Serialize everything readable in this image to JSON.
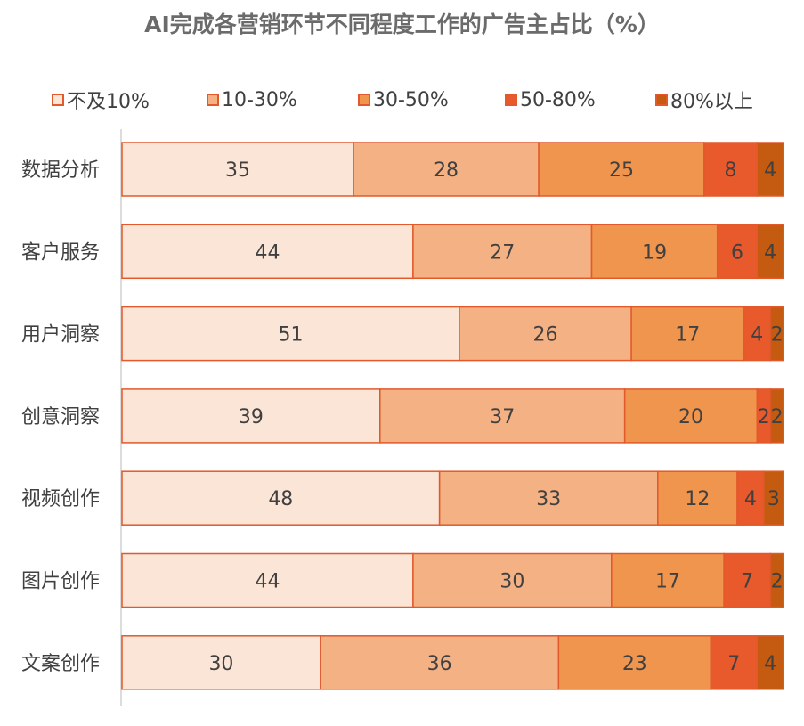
{
  "title": "AI完成各营销环节不同程度工作的广告主占比（%）",
  "chart_data": {
    "type": "bar",
    "orientation": "horizontal",
    "stacked": true,
    "title": "AI完成各营销环节不同程度工作的广告主占比（%）",
    "legend_position": "top",
    "categories": [
      "数据分析",
      "客户服务",
      "用户洞察",
      "创意洞察",
      "视频创作",
      "图片创作",
      "文案创作"
    ],
    "series": [
      {
        "name": "不及10%",
        "color": "#fbe5d6",
        "values": [
          35,
          44,
          51,
          39,
          48,
          44,
          30
        ]
      },
      {
        "name": "10-30%",
        "color": "#f4b183",
        "values": [
          28,
          27,
          26,
          37,
          33,
          30,
          36
        ]
      },
      {
        "name": "30-50%",
        "color": "#f0954e",
        "values": [
          25,
          19,
          17,
          20,
          12,
          17,
          23
        ]
      },
      {
        "name": "50-80%",
        "color": "#e8592b",
        "values": [
          8,
          6,
          4,
          2,
          4,
          7,
          7
        ]
      },
      {
        "name": "80%以上",
        "color": "#c55a11",
        "values": [
          4,
          4,
          2,
          2,
          3,
          2,
          4
        ]
      }
    ],
    "xlim": [
      0,
      100
    ],
    "grid": false
  }
}
